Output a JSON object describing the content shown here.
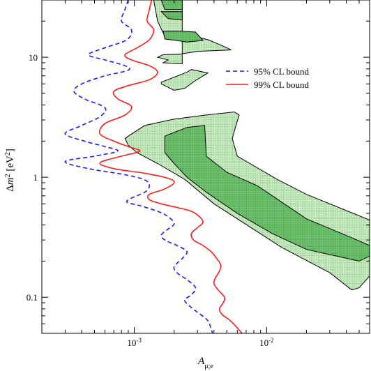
{
  "chart_data": {
    "type": "line",
    "title": "",
    "xlabel": "A_{μ;e}",
    "ylabel": "Δm² [eV²]",
    "xscale": "log",
    "yscale": "log",
    "xlim": [
      0.0002,
      0.06
    ],
    "ylim": [
      0.05,
      30
    ],
    "grid": false,
    "legend_position": "upper-right",
    "x_ticks": [
      {
        "value": 0.001,
        "base": "10",
        "exp": "-3"
      },
      {
        "value": 0.01,
        "base": "10",
        "exp": "-2"
      }
    ],
    "y_ticks": [
      {
        "value": 0.1,
        "label": "0.1"
      },
      {
        "value": 1,
        "label": "1"
      },
      {
        "value": 10,
        "label": "10"
      }
    ],
    "series": [
      {
        "name": "95% CL bound",
        "style": "dashed",
        "color": "#1a1aff",
        "points": [
          [
            0.0009,
            30
          ],
          [
            0.00085,
            25
          ],
          [
            0.0008,
            20
          ],
          [
            0.00095,
            17
          ],
          [
            0.00088,
            14
          ],
          [
            0.0006,
            12
          ],
          [
            0.00045,
            10.5
          ],
          [
            0.0006,
            9.5
          ],
          [
            0.00085,
            8.5
          ],
          [
            0.0009,
            7.8
          ],
          [
            0.0006,
            7
          ],
          [
            0.0004,
            6
          ],
          [
            0.00035,
            5.2
          ],
          [
            0.00042,
            4.5
          ],
          [
            0.0006,
            3.8
          ],
          [
            0.00055,
            3.2
          ],
          [
            0.0004,
            2.7
          ],
          [
            0.0003,
            2.3
          ],
          [
            0.00042,
            2.0
          ],
          [
            0.0006,
            1.8
          ],
          [
            0.00075,
            1.65
          ],
          [
            0.0005,
            1.5
          ],
          [
            0.0003,
            1.35
          ],
          [
            0.00045,
            1.18
          ],
          [
            0.00085,
            1.05
          ],
          [
            0.0012,
            0.95
          ],
          [
            0.0013,
            0.85
          ],
          [
            0.0012,
            0.75
          ],
          [
            0.00095,
            0.67
          ],
          [
            0.00088,
            0.62
          ],
          [
            0.0011,
            0.58
          ],
          [
            0.0015,
            0.52
          ],
          [
            0.0018,
            0.47
          ],
          [
            0.002,
            0.41
          ],
          [
            0.0018,
            0.37
          ],
          [
            0.0016,
            0.33
          ],
          [
            0.0017,
            0.3
          ],
          [
            0.0021,
            0.27
          ],
          [
            0.0025,
            0.24
          ],
          [
            0.0023,
            0.21
          ],
          [
            0.002,
            0.18
          ],
          [
            0.0021,
            0.16
          ],
          [
            0.0025,
            0.14
          ],
          [
            0.0029,
            0.12
          ],
          [
            0.0027,
            0.105
          ],
          [
            0.0024,
            0.095
          ],
          [
            0.0026,
            0.085
          ],
          [
            0.003,
            0.075
          ],
          [
            0.0035,
            0.066
          ],
          [
            0.0037,
            0.06
          ],
          [
            0.0039,
            0.05
          ]
        ]
      },
      {
        "name": "99% CL bound",
        "style": "solid",
        "color": "#ff1a1a",
        "points": [
          [
            0.00135,
            30
          ],
          [
            0.0013,
            25
          ],
          [
            0.00125,
            20
          ],
          [
            0.0014,
            17
          ],
          [
            0.0013,
            14
          ],
          [
            0.00105,
            12
          ],
          [
            0.00085,
            10.5
          ],
          [
            0.00095,
            9.5
          ],
          [
            0.0013,
            8.5
          ],
          [
            0.0015,
            7.5
          ],
          [
            0.0013,
            6.5
          ],
          [
            0.0009,
            5.8
          ],
          [
            0.0007,
            5.2
          ],
          [
            0.00075,
            4.5
          ],
          [
            0.00095,
            3.9
          ],
          [
            0.00085,
            3.3
          ],
          [
            0.0006,
            2.8
          ],
          [
            0.00055,
            2.3
          ],
          [
            0.0007,
            2.0
          ],
          [
            0.0009,
            1.8
          ],
          [
            0.0011,
            1.65
          ],
          [
            0.0008,
            1.5
          ],
          [
            0.00055,
            1.32
          ],
          [
            0.0007,
            1.18
          ],
          [
            0.0012,
            1.08
          ],
          [
            0.0018,
            0.98
          ],
          [
            0.002,
            0.9
          ],
          [
            0.0017,
            0.8
          ],
          [
            0.0013,
            0.72
          ],
          [
            0.0013,
            0.65
          ],
          [
            0.0016,
            0.6
          ],
          [
            0.0021,
            0.56
          ],
          [
            0.0027,
            0.52
          ],
          [
            0.0031,
            0.47
          ],
          [
            0.0033,
            0.42
          ],
          [
            0.003,
            0.38
          ],
          [
            0.0027,
            0.34
          ],
          [
            0.0028,
            0.3
          ],
          [
            0.0033,
            0.27
          ],
          [
            0.0038,
            0.24
          ],
          [
            0.0042,
            0.21
          ],
          [
            0.0045,
            0.185
          ],
          [
            0.0044,
            0.165
          ],
          [
            0.0041,
            0.145
          ],
          [
            0.004,
            0.13
          ],
          [
            0.0043,
            0.115
          ],
          [
            0.0048,
            0.1
          ],
          [
            0.0047,
            0.09
          ],
          [
            0.0044,
            0.08
          ],
          [
            0.0046,
            0.072
          ],
          [
            0.0052,
            0.065
          ],
          [
            0.0058,
            0.058
          ],
          [
            0.0065,
            0.05
          ]
        ]
      }
    ],
    "regions": [
      {
        "level": "outer",
        "fill": "#c9edc1",
        "polygons": [
          [
            [
              0.0014,
              30
            ],
            [
              0.0015,
              20
            ],
            [
              0.00165,
              16
            ],
            [
              0.0026,
              15
            ],
            [
              0.003,
              14.7
            ],
            [
              0.0036,
              14
            ],
            [
              0.0046,
              12.5
            ],
            [
              0.0054,
              11.5
            ],
            [
              0.003,
              11.2
            ],
            [
              0.0022,
              10.6
            ],
            [
              0.00165,
              10.5
            ],
            [
              0.0015,
              10
            ],
            [
              0.0018,
              9.5
            ],
            [
              0.00165,
              9
            ],
            [
              0.0023,
              8.8
            ],
            [
              0.0023,
              30
            ]
          ],
          [
            [
              0.0016,
              6.2
            ],
            [
              0.0025,
              7.5
            ],
            [
              0.0027,
              7.9
            ],
            [
              0.0036,
              7.4
            ],
            [
              0.0029,
              6.4
            ],
            [
              0.0024,
              5.5
            ],
            [
              0.002,
              5.3
            ],
            [
              0.0016,
              6.0
            ]
          ],
          [
            [
              0.00085,
              2.1
            ],
            [
              0.0009,
              2.2
            ],
            [
              0.0012,
              2.7
            ],
            [
              0.002,
              3.05
            ],
            [
              0.0035,
              3.3
            ],
            [
              0.0057,
              3.5
            ],
            [
              0.0062,
              3.3
            ],
            [
              0.0058,
              2.6
            ],
            [
              0.0055,
              2.1
            ],
            [
              0.006,
              1.5
            ],
            [
              0.012,
              0.96
            ],
            [
              0.02,
              0.72
            ],
            [
              0.045,
              0.5
            ],
            [
              0.06,
              0.44
            ],
            [
              0.06,
              0.15
            ],
            [
              0.05,
              0.12
            ],
            [
              0.044,
              0.115
            ],
            [
              0.03,
              0.16
            ],
            [
              0.013,
              0.26
            ],
            [
              0.004,
              0.6
            ],
            [
              0.0024,
              0.96
            ],
            [
              0.0015,
              1.3
            ],
            [
              0.00105,
              1.6
            ],
            [
              0.0009,
              1.85
            ]
          ]
        ]
      },
      {
        "level": "inner",
        "fill": "#6cc16c",
        "polygons": [
          [
            [
              0.0016,
              30
            ],
            [
              0.0017,
              25
            ],
            [
              0.0023,
              25
            ],
            [
              0.0023,
              30
            ]
          ],
          [
            [
              0.0016,
              24
            ],
            [
              0.0018,
              21
            ],
            [
              0.0023,
              20.5
            ],
            [
              0.0023,
              24
            ]
          ],
          [
            [
              0.00165,
              16.5
            ],
            [
              0.0017,
              14.2
            ],
            [
              0.0025,
              13.4
            ],
            [
              0.0033,
              13.8
            ],
            [
              0.0029,
              16.2
            ],
            [
              0.0023,
              16.5
            ]
          ],
          [
            [
              0.0017,
              2.2
            ],
            [
              0.0025,
              2.6
            ],
            [
              0.0034,
              2.7
            ],
            [
              0.0035,
              1.5
            ],
            [
              0.005,
              1.1
            ],
            [
              0.0085,
              0.85
            ],
            [
              0.02,
              0.45
            ],
            [
              0.045,
              0.31
            ],
            [
              0.06,
              0.27
            ],
            [
              0.06,
              0.22
            ],
            [
              0.05,
              0.2
            ],
            [
              0.02,
              0.25
            ],
            [
              0.011,
              0.34
            ],
            [
              0.006,
              0.5
            ],
            [
              0.0035,
              0.75
            ],
            [
              0.0025,
              1.0
            ],
            [
              0.002,
              1.3
            ],
            [
              0.0017,
              1.6
            ]
          ]
        ]
      }
    ]
  }
}
